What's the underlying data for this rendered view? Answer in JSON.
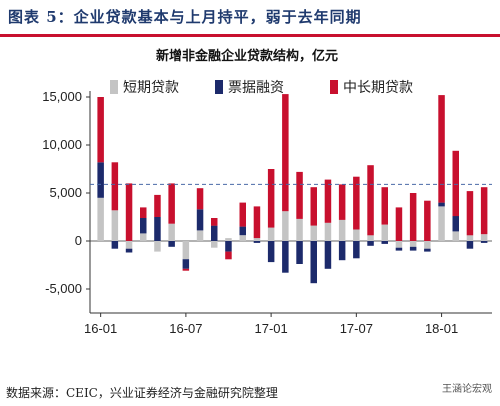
{
  "heading": "图表 5：企业贷款基本与上月持平，弱于去年同期",
  "source": "数据来源：CEIC，兴业证券经济与金融研究院整理",
  "watermark_logo": "王涵论宏观",
  "chart_data": {
    "type": "bar",
    "stacked": true,
    "title": "新增非金融企业贷款结构，亿元",
    "xlabel": "",
    "ylabel": "",
    "ylim": [
      -7500,
      15000
    ],
    "yticks": [
      15000,
      10000,
      5000,
      0,
      -5000
    ],
    "ytick_labels": [
      "15,000",
      "10,000",
      "5,000",
      "0",
      "-5,000"
    ],
    "x_tick_labels": [
      "16-01",
      "16-07",
      "17-01",
      "17-07",
      "18-01"
    ],
    "x_tick_positions": [
      0,
      6,
      12,
      18,
      24
    ],
    "reference_line": {
      "value": 5900,
      "style": "dashed",
      "color": "#4a6aa8"
    },
    "grid": false,
    "legend_position": "top",
    "categories": [
      "16-01",
      "16-02",
      "16-03",
      "16-04",
      "16-05",
      "16-06",
      "16-07",
      "16-08",
      "16-09",
      "16-10",
      "16-11",
      "16-12",
      "17-01",
      "17-02",
      "17-03",
      "17-04",
      "17-05",
      "17-06",
      "17-07",
      "17-08",
      "17-09",
      "17-10",
      "17-11",
      "17-12",
      "18-01",
      "18-02",
      "18-03",
      "18-04"
    ],
    "series": [
      {
        "name": "短期贷款",
        "color": "#c4c4c4",
        "values": [
          4500,
          3200,
          -800,
          800,
          -1100,
          1800,
          -1900,
          1100,
          -700,
          300,
          600,
          300,
          1400,
          3100,
          2300,
          1600,
          1900,
          2200,
          1200,
          600,
          1700,
          -700,
          -600,
          -800,
          3600,
          1000,
          600,
          700
        ]
      },
      {
        "name": "票据融资",
        "color": "#1c2a6b",
        "values": [
          3700,
          -800,
          -400,
          1600,
          2500,
          -600,
          -1000,
          2200,
          1600,
          -1100,
          900,
          -200,
          -2200,
          -3300,
          -2400,
          -4400,
          -2900,
          -2000,
          -1800,
          -500,
          -300,
          -300,
          -400,
          -300,
          400,
          1600,
          -800,
          -200
        ]
      },
      {
        "name": "中长期贷款",
        "color": "#c8102e",
        "values": [
          6800,
          5000,
          6000,
          1100,
          2300,
          4200,
          -200,
          2200,
          800,
          -800,
          2500,
          3300,
          6100,
          12200,
          4900,
          4000,
          4500,
          3700,
          5500,
          7300,
          3900,
          3500,
          5000,
          4200,
          11200,
          6800,
          4600,
          4900
        ]
      }
    ]
  }
}
